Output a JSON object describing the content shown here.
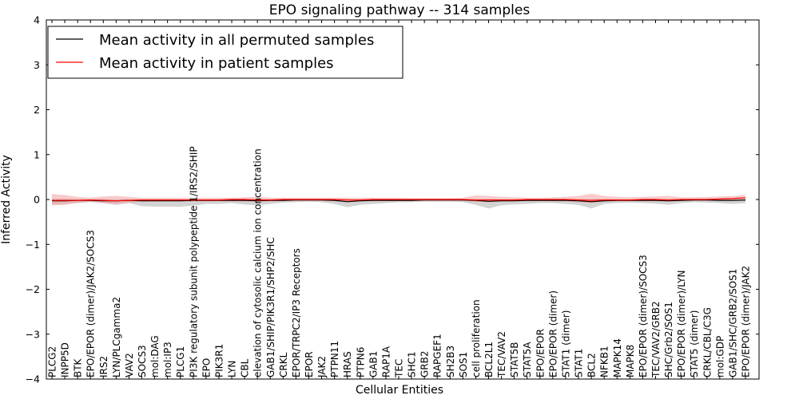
{
  "chart_data": {
    "type": "line",
    "title": "EPO signaling pathway -- 314 samples",
    "xlabel": "Cellular Entities",
    "ylabel": "Inferred Activity",
    "ylim": [
      -4,
      4
    ],
    "yticks": [
      "4",
      "3",
      "2",
      "1",
      "0",
      "−1",
      "−2",
      "−3",
      "−4"
    ],
    "legend_position": "top-left",
    "categories": [
      "PLCG2",
      "INPP5D",
      "BTK",
      "EPO/EPOR (dimer)/JAK2/SOCS3",
      "IRS2",
      "LYN/PLCgamma2",
      "VAV2",
      "SOCS3",
      "mol:DAG",
      "mol:IP3",
      "PLCG1",
      "PI3K regulatory subunit polypeptide 1/IRS2/SHIP",
      "EPO",
      "PIK3R1",
      "LYN",
      "CBL",
      "elevation of cytosolic calcium ion concentration",
      "GAB1/SHIP/PIK3R1/SHP2/SHC",
      "CRKL",
      "EPOR/TRPC2/IP3 Receptors",
      "EPOR",
      "JAK2",
      "PTPN11",
      "HRAS",
      "PTPN6",
      "GAB1",
      "RAP1A",
      "TEC",
      "SHC1",
      "GRB2",
      "RAPGEF1",
      "SH2B3",
      "SOS1",
      "cell proliferation",
      "BCL2L1",
      "TEC/VAV2",
      "STAT5B",
      "STAT5A",
      "EPO/EPOR",
      "EPO/EPOR (dimer)",
      "STAT1 (dimer)",
      "STAT1",
      "BCL2",
      "NFKB1",
      "MAPK14",
      "MAPK8",
      "EPO/EPOR (dimer)/SOCS3",
      "TEC/VAV2/GRB2",
      "SHC/Grb2/SOS1",
      "EPO/EPOR (dimer)/LYN",
      "STAT5 (dimer)",
      "CRKL/CBL/C3G",
      "mol:GDP",
      "GAB1/SHC/GRB2/SOS1",
      "EPO/EPOR (dimer)/JAK2"
    ],
    "series": [
      {
        "name": "Mean activity in all permuted samples",
        "color": "#000000",
        "band_color": "#c0c0c0",
        "values": [
          -0.03,
          -0.03,
          -0.02,
          -0.02,
          -0.03,
          -0.03,
          -0.02,
          -0.03,
          -0.03,
          -0.03,
          -0.03,
          -0.02,
          -0.02,
          -0.02,
          -0.02,
          -0.02,
          -0.03,
          -0.02,
          -0.02,
          -0.01,
          -0.01,
          -0.01,
          -0.02,
          -0.05,
          -0.03,
          -0.02,
          -0.02,
          -0.02,
          -0.02,
          -0.01,
          -0.01,
          -0.01,
          -0.01,
          -0.02,
          -0.04,
          -0.03,
          -0.03,
          -0.02,
          -0.02,
          -0.02,
          -0.02,
          -0.03,
          -0.05,
          -0.03,
          -0.02,
          -0.02,
          -0.02,
          -0.02,
          -0.03,
          -0.02,
          -0.01,
          -0.01,
          -0.02,
          -0.02,
          -0.01
        ],
        "upper": [
          0.02,
          0.02,
          0.01,
          0.01,
          0.01,
          0.01,
          0.01,
          0.01,
          0.01,
          0.01,
          0.01,
          0.01,
          0.01,
          0.01,
          0.01,
          0.01,
          0.01,
          0.01,
          0.01,
          0.01,
          0.01,
          0.01,
          0.01,
          0.01,
          0.01,
          0.01,
          0.01,
          0.01,
          0.01,
          0.01,
          0.01,
          0.01,
          0.01,
          0.01,
          0.01,
          0.01,
          0.01,
          0.01,
          0.01,
          0.01,
          0.01,
          0.01,
          0.01,
          0.01,
          0.01,
          0.01,
          0.01,
          0.01,
          0.01,
          0.01,
          0.01,
          0.01,
          0.01,
          0.01,
          0.01
        ],
        "lower": [
          -0.12,
          -0.1,
          -0.07,
          -0.06,
          -0.08,
          -0.12,
          -0.08,
          -0.15,
          -0.16,
          -0.16,
          -0.16,
          -0.14,
          -0.1,
          -0.1,
          -0.08,
          -0.11,
          -0.13,
          -0.1,
          -0.07,
          -0.06,
          -0.05,
          -0.06,
          -0.1,
          -0.17,
          -0.12,
          -0.1,
          -0.08,
          -0.06,
          -0.06,
          -0.05,
          -0.05,
          -0.05,
          -0.06,
          -0.12,
          -0.2,
          -0.13,
          -0.11,
          -0.1,
          -0.08,
          -0.08,
          -0.1,
          -0.12,
          -0.2,
          -0.1,
          -0.08,
          -0.07,
          -0.08,
          -0.09,
          -0.12,
          -0.08,
          -0.06,
          -0.07,
          -0.08,
          -0.1,
          -0.08
        ]
      },
      {
        "name": "Mean activity in patient samples",
        "color": "#ff0000",
        "band_color": "#f4a0a0",
        "values": [
          -0.02,
          -0.02,
          -0.02,
          -0.01,
          -0.02,
          -0.03,
          -0.02,
          -0.01,
          -0.01,
          -0.01,
          -0.01,
          -0.01,
          -0.01,
          -0.01,
          0.0,
          0.0,
          -0.01,
          -0.01,
          0.0,
          0.0,
          0.0,
          0.0,
          0.0,
          -0.01,
          -0.01,
          0.0,
          0.0,
          0.0,
          0.0,
          0.0,
          0.0,
          0.0,
          0.0,
          -0.01,
          -0.01,
          -0.01,
          -0.01,
          0.0,
          0.0,
          0.0,
          0.0,
          -0.01,
          -0.02,
          -0.01,
          -0.01,
          -0.01,
          0.0,
          0.0,
          -0.01,
          0.0,
          0.0,
          0.0,
          0.01,
          0.02,
          0.04
        ],
        "upper": [
          0.12,
          0.1,
          0.06,
          0.04,
          0.07,
          0.08,
          0.06,
          0.04,
          0.04,
          0.04,
          0.04,
          0.04,
          0.04,
          0.04,
          0.04,
          0.05,
          0.06,
          0.04,
          0.04,
          0.04,
          0.04,
          0.04,
          0.04,
          0.04,
          0.04,
          0.04,
          0.04,
          0.04,
          0.03,
          0.03,
          0.03,
          0.03,
          0.04,
          0.09,
          0.08,
          0.06,
          0.05,
          0.04,
          0.04,
          0.05,
          0.06,
          0.08,
          0.13,
          0.08,
          0.06,
          0.05,
          0.06,
          0.07,
          0.08,
          0.05,
          0.05,
          0.06,
          0.07,
          0.08,
          0.1
        ],
        "lower": [
          -0.13,
          -0.12,
          -0.08,
          -0.05,
          -0.08,
          -0.1,
          -0.07,
          -0.05,
          -0.04,
          -0.04,
          -0.04,
          -0.04,
          -0.04,
          -0.04,
          -0.04,
          -0.04,
          -0.05,
          -0.04,
          -0.03,
          -0.03,
          -0.03,
          -0.03,
          -0.03,
          -0.04,
          -0.04,
          -0.03,
          -0.03,
          -0.03,
          -0.03,
          -0.03,
          -0.03,
          -0.03,
          -0.03,
          -0.06,
          -0.06,
          -0.05,
          -0.04,
          -0.03,
          -0.03,
          -0.04,
          -0.04,
          -0.06,
          -0.08,
          -0.05,
          -0.04,
          -0.04,
          -0.04,
          -0.04,
          -0.05,
          -0.03,
          -0.03,
          -0.03,
          -0.02,
          -0.01,
          0.0
        ]
      }
    ]
  }
}
